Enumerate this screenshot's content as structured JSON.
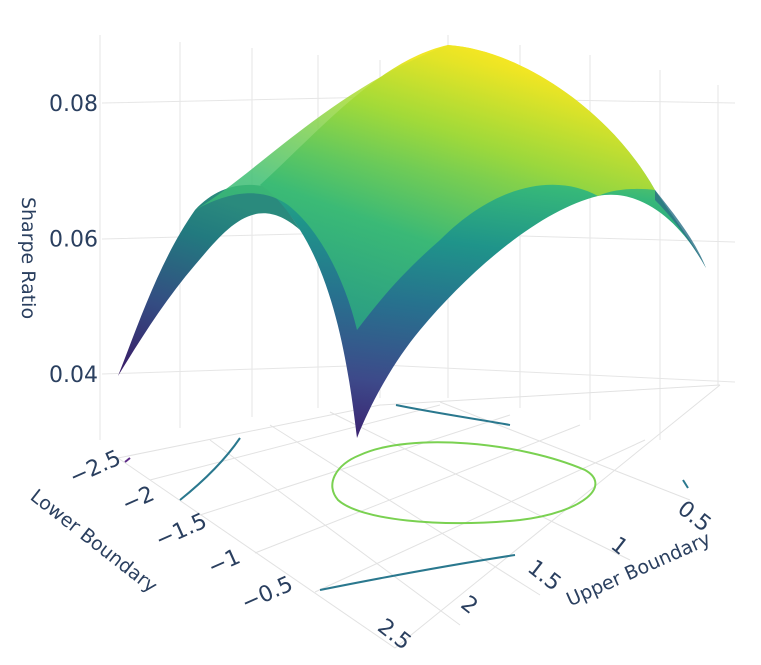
{
  "chart_data": {
    "type": "surface",
    "title": "",
    "xlabel": "Upper Boundary",
    "ylabel": "Lower Boundary",
    "zlabel": "Sharpe Ratio",
    "x_ticks": [
      "0.5",
      "1",
      "1.5",
      "2",
      "2.5"
    ],
    "y_ticks": [
      "−2.5",
      "−2",
      "−1.5",
      "−1",
      "−0.5"
    ],
    "z_ticks": [
      "0.04",
      "0.06",
      "0.08"
    ],
    "xlim": [
      0.5,
      2.5
    ],
    "ylim": [
      -2.5,
      -0.5
    ],
    "zlim": [
      0.033,
      0.088
    ],
    "peak": {
      "upper": 1.5,
      "lower": -1.5,
      "sharpe": 0.087
    },
    "corner_values": {
      "upper_0.5_lower_-2.5": 0.038,
      "upper_2.5_lower_-0.5": 0.034,
      "upper_0.5_lower_-0.5": 0.069,
      "upper_2.5_lower_-2.5": 0.068
    },
    "colorscale": "viridis",
    "contours": {
      "projected_on_floor": true,
      "levels": [
        0.045,
        0.055,
        0.065,
        0.075
      ]
    },
    "grid": true,
    "colors": {
      "low": "#440154",
      "mid": "#21918c",
      "high": "#fde725",
      "contour_high": "#7ad151"
    }
  }
}
